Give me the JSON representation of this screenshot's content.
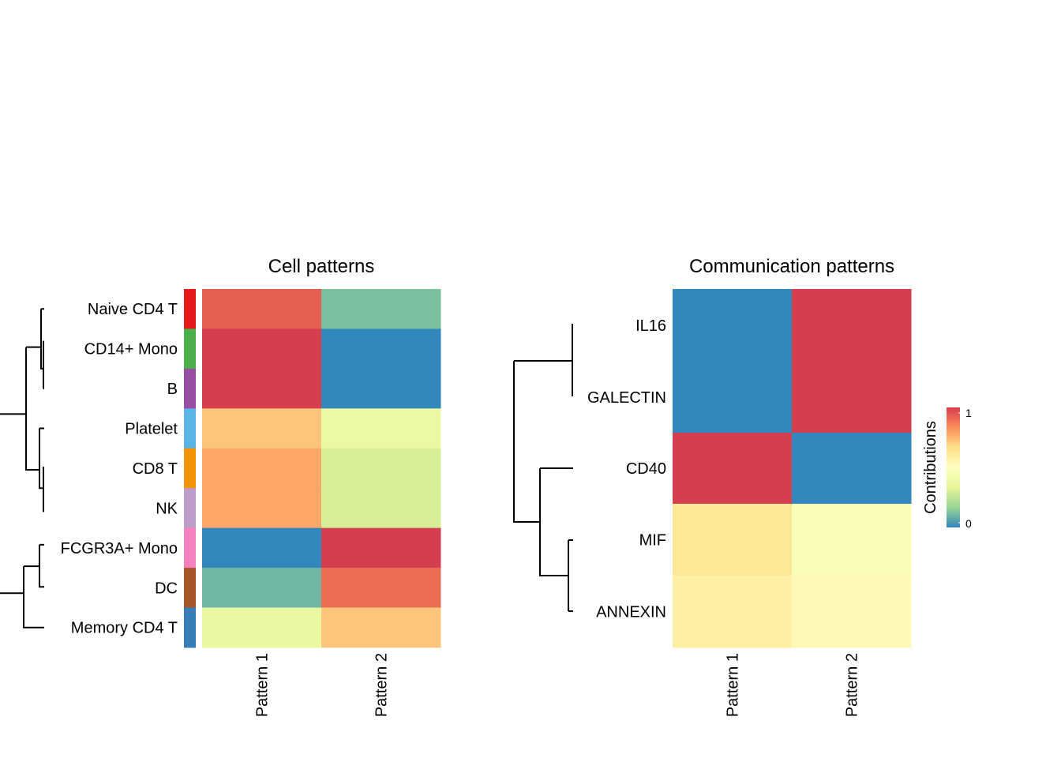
{
  "chart_data": [
    {
      "type": "heatmap",
      "title": "Cell patterns",
      "rows": [
        "Naive CD4 T",
        "CD14+ Mono",
        "B",
        "Platelet",
        "CD8 T",
        "NK",
        "FCGR3A+ Mono",
        "DC",
        "Memory CD4 T"
      ],
      "columns": [
        "Pattern 1",
        "Pattern 2"
      ],
      "values": [
        [
          0.93,
          0.12
        ],
        [
          1.0,
          0.0
        ],
        [
          1.0,
          0.0
        ],
        [
          0.72,
          0.38
        ],
        [
          0.78,
          0.3
        ],
        [
          0.78,
          0.3
        ],
        [
          0.0,
          1.0
        ],
        [
          0.1,
          0.9
        ],
        [
          0.37,
          0.72
        ]
      ],
      "row_annotation_colors": [
        "#E41A1C",
        "#4DAF4A",
        "#984EA3",
        "#5AB4E5",
        "#F29403",
        "#BC9DCC",
        "#F781BF",
        "#A65628",
        "#377EB8"
      ],
      "row_dendrogram": true
    },
    {
      "type": "heatmap",
      "title": "Communication patterns",
      "rows": [
        "IL16",
        "GALECTIN",
        "CD40",
        "MIF",
        "ANNEXIN"
      ],
      "columns": [
        "Pattern 1",
        "Pattern 2"
      ],
      "values": [
        [
          0.0,
          1.0
        ],
        [
          0.0,
          1.0
        ],
        [
          1.0,
          0.0
        ],
        [
          0.63,
          0.46
        ],
        [
          0.58,
          0.53
        ]
      ],
      "row_heights": [
        2,
        1,
        1,
        1
      ],
      "row_dendrogram": true
    }
  ],
  "legend": {
    "title": "Contributions",
    "max_label": "1",
    "min_label": "0",
    "scale_colors": [
      "#3288BD",
      "#99D594",
      "#E6F598",
      "#FFFFBF",
      "#FEE08B",
      "#FC8D59",
      "#D53E4F"
    ]
  }
}
